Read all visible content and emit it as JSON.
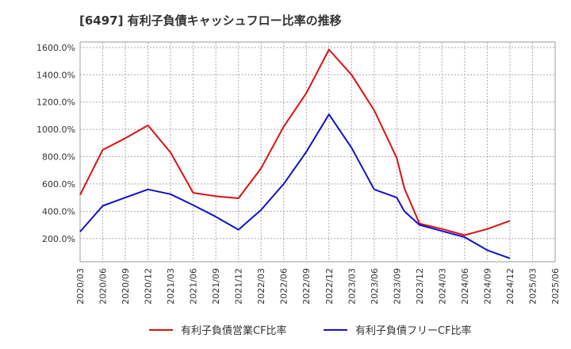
{
  "chart_data": {
    "type": "line",
    "title": "[6497]  有利子負債キャッシュフロー比率の推移",
    "xlabel": "",
    "ylabel": "",
    "x": [
      "2020/03",
      "2020/06",
      "2020/09",
      "2020/12",
      "2021/03",
      "2021/06",
      "2021/09",
      "2021/12",
      "2022/03",
      "2022/06",
      "2022/09",
      "2022/12",
      "2023/03",
      "2023/06",
      "2023/09",
      "2023/12",
      "2024/03",
      "2024/06",
      "2024/09",
      "2024/12",
      "2025/03",
      "2025/06"
    ],
    "y_ticks": [
      "200.0%",
      "400.0%",
      "600.0%",
      "800.0%",
      "1000.0%",
      "1200.0%",
      "1400.0%",
      "1600.0%"
    ],
    "ylim": [
      30,
      1640
    ],
    "grid": true,
    "legend_position": "bottom",
    "series": [
      {
        "name": "有利子負債営業CF比率",
        "color": "#dd1111",
        "points": [
          [
            "2020/03",
            520
          ],
          [
            "2020/06",
            850
          ],
          [
            "2020/09",
            935
          ],
          [
            "2020/12",
            1030
          ],
          [
            "2021/03",
            830
          ],
          [
            "2021/06",
            535
          ],
          [
            "2021/09",
            510
          ],
          [
            "2021/12",
            495
          ],
          [
            "2022/03",
            715
          ],
          [
            "2022/06",
            1020
          ],
          [
            "2022/09",
            1265
          ],
          [
            "2022/12",
            1585
          ],
          [
            "2023/03",
            1400
          ],
          [
            "2023/06",
            1140
          ],
          [
            "2023/09",
            790
          ],
          [
            "2023/10",
            570
          ],
          [
            "2023/12",
            310
          ],
          [
            "2024/03",
            270
          ],
          [
            "2024/06",
            225
          ],
          [
            "2024/09",
            270
          ],
          [
            "2024/12",
            330
          ]
        ]
      },
      {
        "name": "有利子負債フリーCF比率",
        "color": "#1111cc",
        "points": [
          [
            "2020/03",
            250
          ],
          [
            "2020/06",
            440
          ],
          [
            "2020/09",
            500
          ],
          [
            "2020/12",
            560
          ],
          [
            "2021/03",
            525
          ],
          [
            "2021/06",
            445
          ],
          [
            "2021/09",
            360
          ],
          [
            "2021/12",
            265
          ],
          [
            "2022/03",
            410
          ],
          [
            "2022/06",
            600
          ],
          [
            "2022/09",
            835
          ],
          [
            "2022/12",
            1110
          ],
          [
            "2023/03",
            865
          ],
          [
            "2023/06",
            560
          ],
          [
            "2023/09",
            500
          ],
          [
            "2023/10",
            400
          ],
          [
            "2023/12",
            300
          ],
          [
            "2024/03",
            255
          ],
          [
            "2024/06",
            210
          ],
          [
            "2024/09",
            115
          ],
          [
            "2024/12",
            55
          ]
        ]
      }
    ]
  }
}
